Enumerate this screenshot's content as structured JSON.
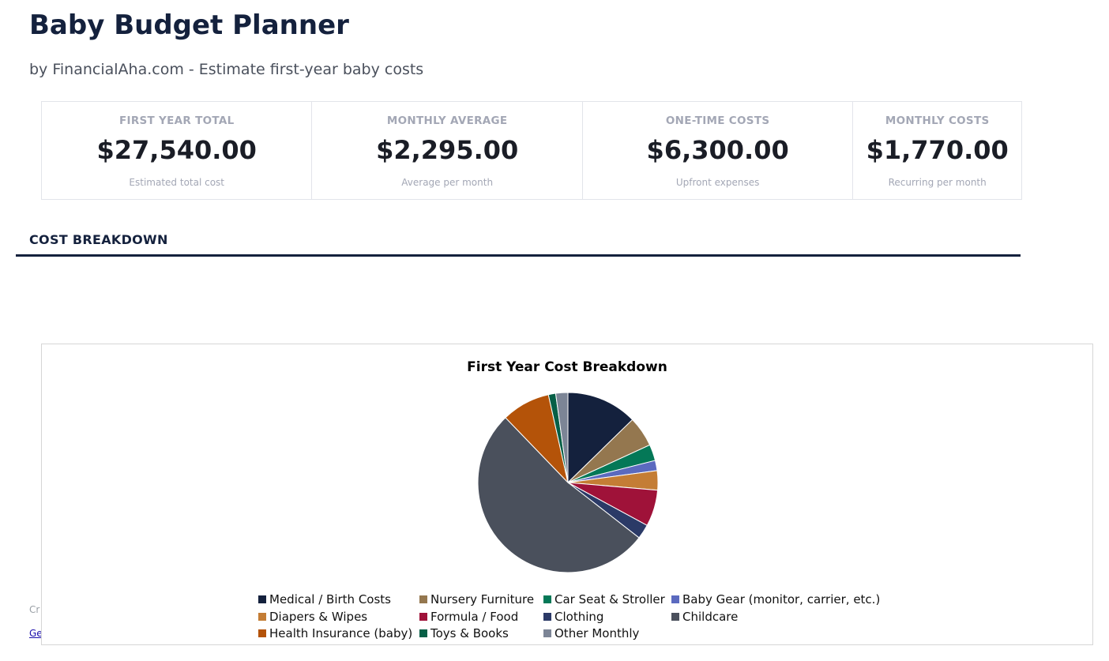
{
  "header": {
    "title": "Baby Budget Planner",
    "subtitle": "by FinancialAha.com - Estimate first-year baby costs"
  },
  "cards": [
    {
      "label": "FIRST YEAR TOTAL",
      "value": "$27,540.00",
      "sub": "Estimated total cost"
    },
    {
      "label": "MONTHLY AVERAGE",
      "value": "$2,295.00",
      "sub": "Average per month"
    },
    {
      "label": "ONE-TIME COSTS",
      "value": "$6,300.00",
      "sub": "Upfront expenses"
    },
    {
      "label": "MONTHLY COSTS",
      "value": "$1,770.00",
      "sub": "Recurring per month"
    }
  ],
  "section_title": "COST BREAKDOWN",
  "obscured": {
    "text_fragment": "Cr",
    "link_fragment": "Ge"
  },
  "chart_data": {
    "type": "pie",
    "title": "First Year Cost Breakdown",
    "legend_position": "bottom",
    "categories": [
      "Medical / Birth Costs",
      "Nursery Furniture",
      "Car Seat & Stroller",
      "Baby Gear (monitor, carrier, etc.)",
      "Diapers & Wipes",
      "Formula / Food",
      "Clothing",
      "Childcare",
      "Health Insurance (baby)",
      "Toys & Books",
      "Other Monthly"
    ],
    "values": [
      3500,
      1500,
      800,
      500,
      960,
      1800,
      720,
      14400,
      2400,
      360,
      600
    ],
    "colors": [
      "#14213d",
      "#94774f",
      "#047857",
      "#5b6abf",
      "#c47d35",
      "#9f1239",
      "#2b3a67",
      "#4a505c",
      "#b45309",
      "#065f46",
      "#7c8596"
    ]
  }
}
